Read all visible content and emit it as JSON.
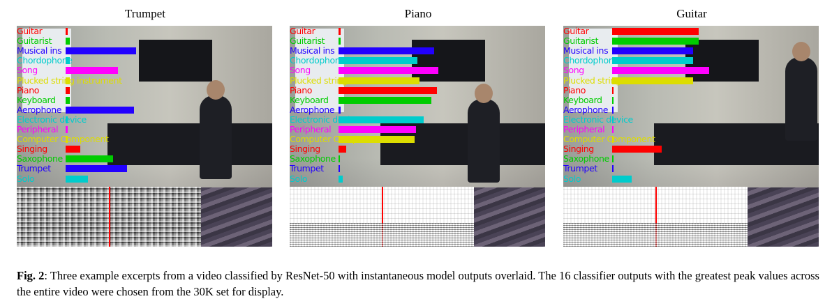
{
  "panels": [
    {
      "title": "Trumpet",
      "spec_style": "trumpet",
      "cursor_frac": 0.5,
      "scores": [
        {
          "label": "Guitar",
          "color": "#ff0000",
          "value": 0.015
        },
        {
          "label": "Guitarist",
          "color": "#00cc00",
          "value": 0.03
        },
        {
          "label": "Musical ins",
          "color": "#2200ff",
          "value": 0.47
        },
        {
          "label": "Chordophone",
          "color": "#00cccc",
          "value": 0.03
        },
        {
          "label": "Song",
          "color": "#ff00ff",
          "value": 0.35
        },
        {
          "label": "Plucked string instrument",
          "color": "#dddd00",
          "value": 0.03
        },
        {
          "label": "Piano",
          "color": "#ff0000",
          "value": 0.03
        },
        {
          "label": "Keyboard",
          "color": "#00cc00",
          "value": 0.03
        },
        {
          "label": "Aerophone",
          "color": "#2200ff",
          "value": 0.46
        },
        {
          "label": "Electronic device",
          "color": "#00cccc",
          "value": 0.015
        },
        {
          "label": "Peripheral",
          "color": "#ff00ff",
          "value": 0.015
        },
        {
          "label": "Computer Component",
          "color": "#dddd00",
          "value": 0.015
        },
        {
          "label": "Singing",
          "color": "#ff0000",
          "value": 0.1
        },
        {
          "label": "Saxophone",
          "color": "#00cc00",
          "value": 0.32
        },
        {
          "label": "Trumpet",
          "color": "#2200ff",
          "value": 0.41
        },
        {
          "label": "Solo",
          "color": "#00cccc",
          "value": 0.15
        }
      ]
    },
    {
      "title": "Piano",
      "spec_style": "light",
      "cursor_frac": 0.5,
      "scores": [
        {
          "label": "Guitar",
          "color": "#ff0000",
          "value": 0.015
        },
        {
          "label": "Guitarist",
          "color": "#00cc00",
          "value": 0.015
        },
        {
          "label": "Musical ins",
          "color": "#2200ff",
          "value": 0.64
        },
        {
          "label": "Chordophone",
          "color": "#00cccc",
          "value": 0.53
        },
        {
          "label": "Song",
          "color": "#ff00ff",
          "value": 0.67
        },
        {
          "label": "Plucked string instrument",
          "color": "#dddd00",
          "value": 0.54
        },
        {
          "label": "Piano",
          "color": "#ff0000",
          "value": 0.66
        },
        {
          "label": "Keyboard",
          "color": "#00cc00",
          "value": 0.62
        },
        {
          "label": "Aerophone",
          "color": "#2200ff",
          "value": 0.015
        },
        {
          "label": "Electronic device",
          "color": "#00cccc",
          "value": 0.57
        },
        {
          "label": "Peripheral",
          "color": "#ff00ff",
          "value": 0.52
        },
        {
          "label": "Computer Component",
          "color": "#dddd00",
          "value": 0.51
        },
        {
          "label": "Singing",
          "color": "#ff0000",
          "value": 0.05
        },
        {
          "label": "Saxophone",
          "color": "#00cc00",
          "value": 0.01
        },
        {
          "label": "Trumpet",
          "color": "#2200ff",
          "value": 0.01
        },
        {
          "label": "Solo",
          "color": "#00cccc",
          "value": 0.03
        }
      ]
    },
    {
      "title": "Guitar",
      "spec_style": "light",
      "cursor_frac": 0.5,
      "scores": [
        {
          "label": "Guitar",
          "color": "#ff0000",
          "value": 0.58
        },
        {
          "label": "Guitarist",
          "color": "#00cc00",
          "value": 0.58
        },
        {
          "label": "Musical ins",
          "color": "#2200ff",
          "value": 0.54
        },
        {
          "label": "Chordophone",
          "color": "#00cccc",
          "value": 0.54
        },
        {
          "label": "Song",
          "color": "#ff00ff",
          "value": 0.65
        },
        {
          "label": "Plucked string instrument",
          "color": "#dddd00",
          "value": 0.54
        },
        {
          "label": "Piano",
          "color": "#ff0000",
          "value": 0.01
        },
        {
          "label": "Keyboard",
          "color": "#00cc00",
          "value": 0.01
        },
        {
          "label": "Aerophone",
          "color": "#2200ff",
          "value": 0.01
        },
        {
          "label": "Electronic device",
          "color": "#00cccc",
          "value": 0.01
        },
        {
          "label": "Peripheral",
          "color": "#ff00ff",
          "value": 0.01
        },
        {
          "label": "Computer Component",
          "color": "#dddd00",
          "value": 0.01
        },
        {
          "label": "Singing",
          "color": "#ff0000",
          "value": 0.33
        },
        {
          "label": "Saxophone",
          "color": "#00cc00",
          "value": 0.01
        },
        {
          "label": "Trumpet",
          "color": "#2200ff",
          "value": 0.01
        },
        {
          "label": "Solo",
          "color": "#00cccc",
          "value": 0.13
        }
      ]
    }
  ],
  "caption": {
    "fig_label": "Fig. 2",
    "text": ": Three example excerpts from a video classified by ResNet-50 with instantaneous model outputs overlaid. The 16 classifier outputs with the greatest peak values across the entire video were chosen from the 30K set for display."
  }
}
